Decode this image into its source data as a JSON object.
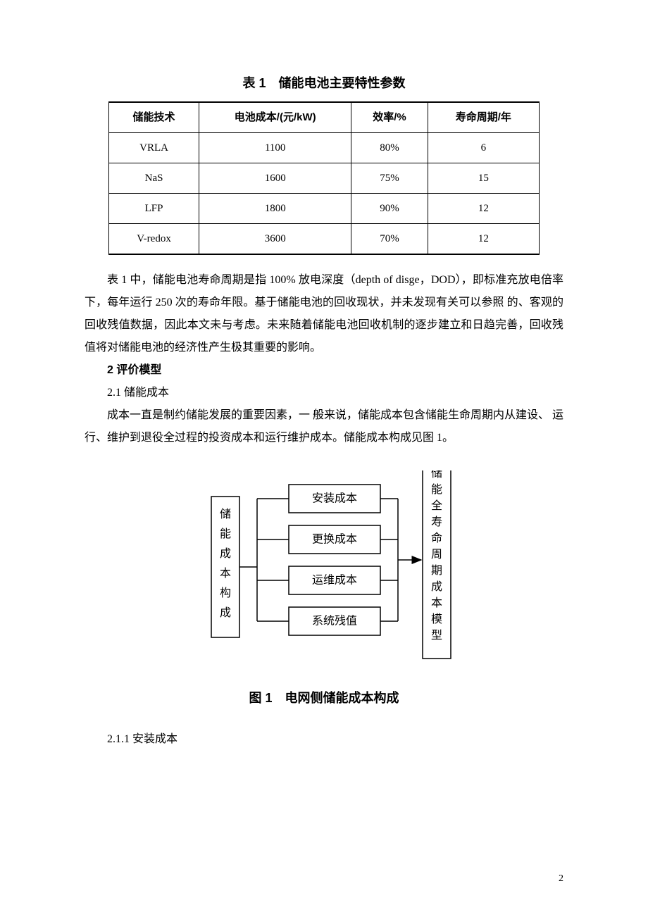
{
  "table": {
    "title": "表 1　储能电池主要特性参数",
    "headers": [
      "储能技术",
      "电池成本/(元/kW)",
      "效率/%",
      "寿命周期/年"
    ],
    "rows": [
      [
        "VRLA",
        "1100",
        "80%",
        "6"
      ],
      [
        "NaS",
        "1600",
        "75%",
        "15"
      ],
      [
        "LFP",
        "1800",
        "90%",
        "12"
      ],
      [
        "V-redox",
        "3600",
        "70%",
        "12"
      ]
    ],
    "border_color": "#000000",
    "header_font_weight": "bold"
  },
  "paragraphs": {
    "p1": "表 1 中，储能电池寿命周期是指 100% 放电深度（depth of disge，DOD），即标准充放电倍率下，每年运行 250 次的寿命年限。基于储能电池的回收现状，并未发现有关可以参照 的、客观的回收残值数据，因此本文未与考虑。未来随着储能电池回收机制的逐步建立和日趋完善，回收残值将对储能电池的经济性产生极其重要的影响。",
    "section2": "2 评价模型",
    "section2_1": "2.1 储能成本",
    "p2": "成本一直是制约储能发展的重要因素，一 般来说，储能成本包含储能生命周期内从建设、 运行、维护到退役全过程的投资成本和运行维护成本。储能成本构成见图 1。",
    "section2_1_1": "2.1.1 安装成本"
  },
  "diagram": {
    "left_box": "储能成本构成",
    "middle_boxes": [
      "安装成本",
      "更换成本",
      "运维成本",
      "系统残值"
    ],
    "right_box": "储能全寿命周期成本模型",
    "box_border_color": "#000000",
    "box_bg_color": "#ffffff",
    "line_color": "#000000",
    "font_size": 16,
    "left_box_width": 40,
    "left_box_height": 200,
    "middle_box_width": 130,
    "middle_box_height": 40,
    "middle_gap": 18,
    "right_box_width": 40,
    "right_box_height": 280
  },
  "figure_caption": "图 1　电网侧储能成本构成",
  "page_number": "2"
}
